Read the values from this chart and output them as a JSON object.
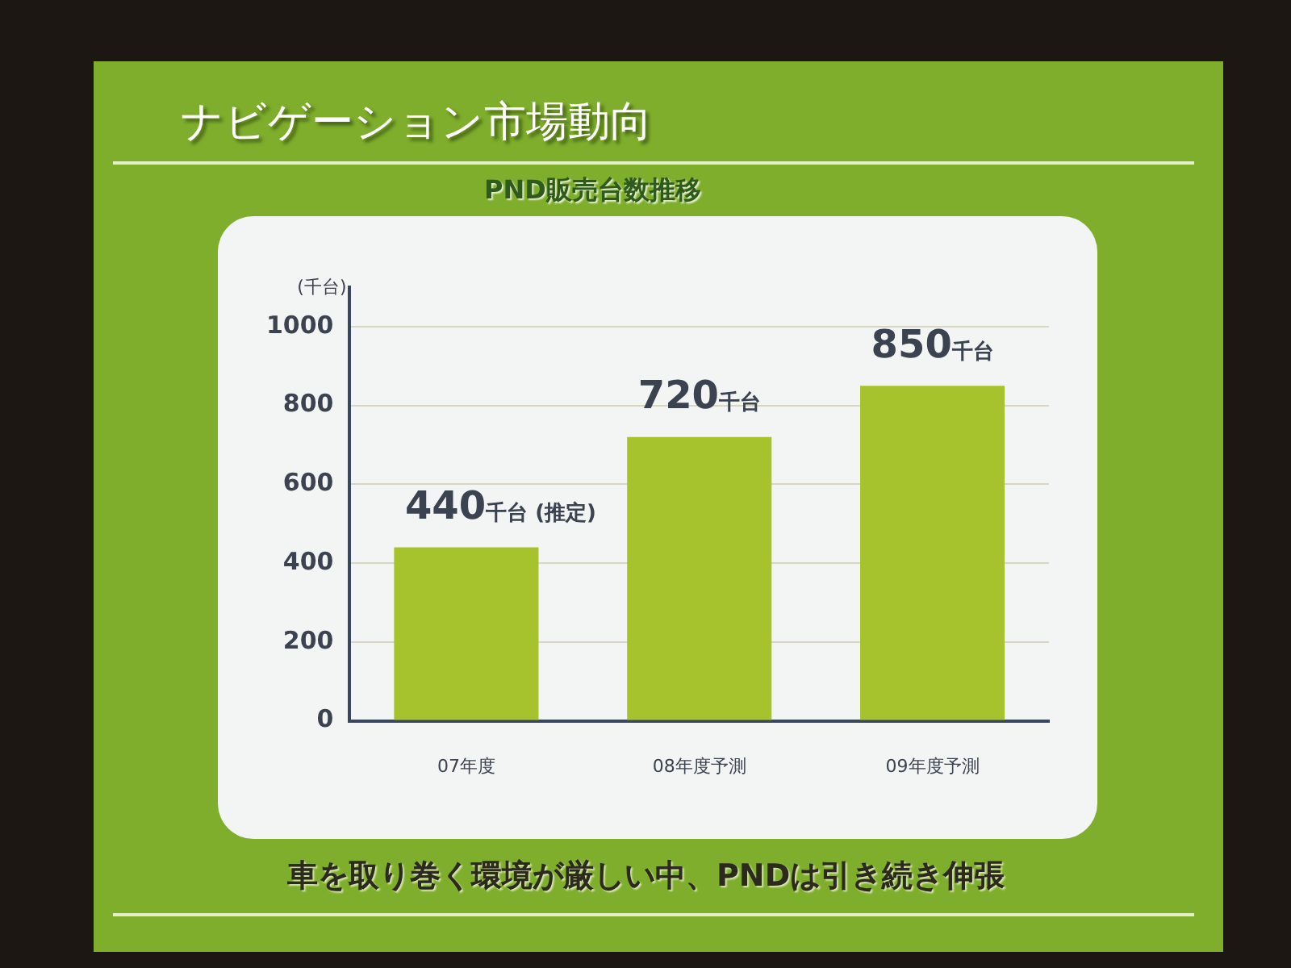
{
  "chart_data": {
    "type": "bar",
    "title": "ナビゲーション市場動向",
    "subtitle": "PND販売台数推移",
    "ylabel": "(千台)",
    "categories": [
      "07年度",
      "08年度予測",
      "09年度予測"
    ],
    "values": [
      440,
      720,
      850
    ],
    "color": "#a6c22c",
    "value_labels": [
      "440千台 (推定)",
      "720千台",
      "850千台"
    ],
    "ylim": [
      0,
      1100
    ],
    "yticks": [
      0,
      200,
      400,
      600,
      800,
      1000
    ],
    "grid": "y",
    "annotations": [
      "車を取り巻く環境が厳しい中、PNDは引き続き伸張"
    ]
  }
}
